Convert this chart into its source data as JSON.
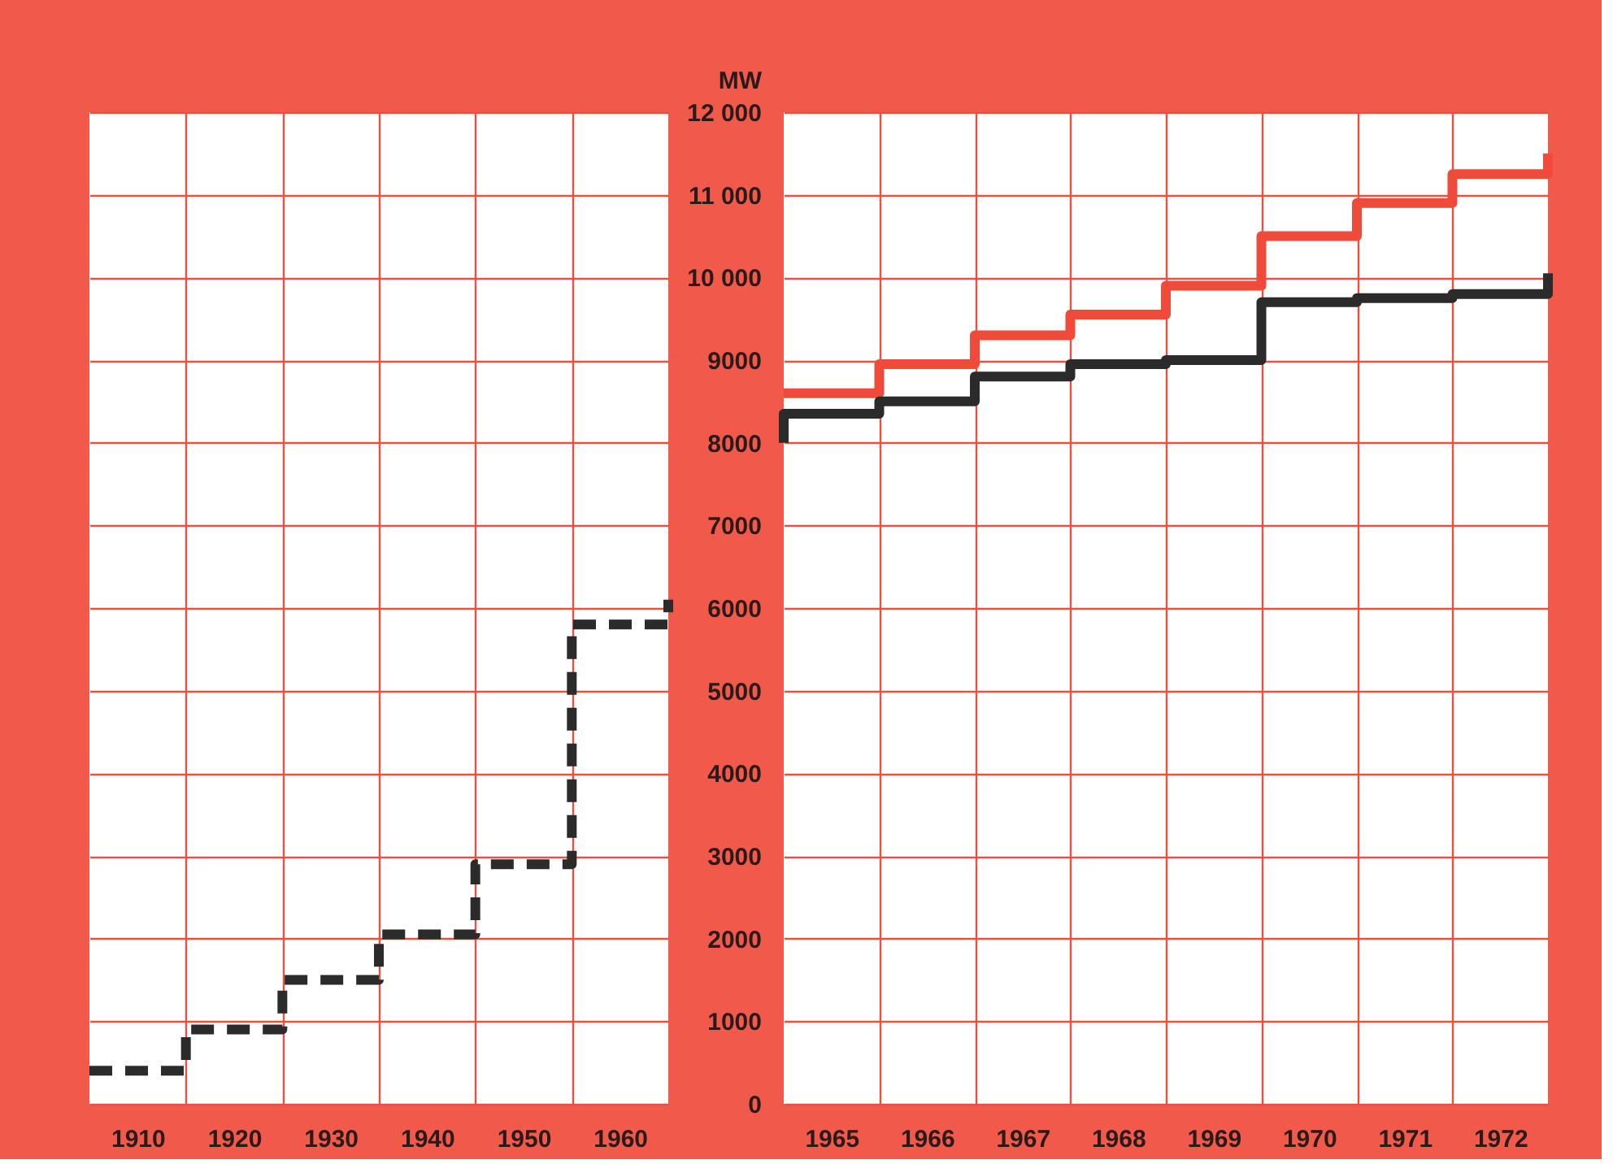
{
  "chart_data": [
    {
      "type": "step",
      "xlim": [
        1905,
        1965
      ],
      "xticks": [
        {
          "value": 1910,
          "label": "1910"
        },
        {
          "value": 1915,
          "label": null
        },
        {
          "value": 1920,
          "label": "1920"
        },
        {
          "value": 1925,
          "label": null
        },
        {
          "value": 1930,
          "label": "1930"
        },
        {
          "value": 1935,
          "label": null
        },
        {
          "value": 1940,
          "label": "1940"
        },
        {
          "value": 1945,
          "label": null
        },
        {
          "value": 1950,
          "label": "1950"
        },
        {
          "value": 1955,
          "label": null
        },
        {
          "value": 1960,
          "label": "1960"
        }
      ],
      "ylim": [
        0,
        12000
      ],
      "yticks": [
        0,
        1000,
        2000,
        3000,
        4000,
        5000,
        6000,
        7000,
        8000,
        9000,
        10000,
        11000,
        12000
      ],
      "tick_labels": "x",
      "grid": true,
      "line_style": "dashed",
      "series": [
        {
          "color": "#2b2b2b",
          "x": [
            1905,
            1915,
            1925,
            1935,
            1945,
            1955,
            1965
          ],
          "values": [
            400,
            900,
            1500,
            2050,
            2900,
            5800,
            6100
          ]
        }
      ]
    },
    {
      "type": "step",
      "xlim": [
        1964.5,
        1972.5
      ],
      "xticks": [
        {
          "value": 1965,
          "label": "1965"
        },
        {
          "value": 1965.5,
          "label": null
        },
        {
          "value": 1966,
          "label": "1966"
        },
        {
          "value": 1966.5,
          "label": null
        },
        {
          "value": 1967,
          "label": "1967"
        },
        {
          "value": 1967.5,
          "label": null
        },
        {
          "value": 1968,
          "label": "1968"
        },
        {
          "value": 1968.5,
          "label": null
        },
        {
          "value": 1969,
          "label": "1969"
        },
        {
          "value": 1969.5,
          "label": null
        },
        {
          "value": 1970,
          "label": "1970"
        },
        {
          "value": 1970.5,
          "label": null
        },
        {
          "value": 1971,
          "label": "1971"
        },
        {
          "value": 1971.5,
          "label": null
        },
        {
          "value": 1972,
          "label": "1972"
        }
      ],
      "ylabel": "MW",
      "ylim": [
        0,
        12000
      ],
      "yticks": [
        0,
        1000,
        2000,
        3000,
        4000,
        5000,
        6000,
        7000,
        8000,
        9000,
        {
          "value": 10000,
          "label": "10 000"
        },
        {
          "value": 11000,
          "label": "11 000"
        },
        {
          "value": 12000,
          "label": "12 000"
        }
      ],
      "grid": true,
      "line_style": "solid",
      "series": [
        {
          "color": "#f04a3a",
          "x": [
            1964.5,
            1965.5,
            1966.5,
            1967.5,
            1968.5,
            1969.5,
            1970.5,
            1971.5,
            1972.5
          ],
          "values": [
            8600,
            8950,
            9300,
            9550,
            9900,
            10500,
            10900,
            11250,
            11500
          ]
        },
        {
          "color": "#2b2b2b",
          "x": [
            1964.5,
            1964.5,
            1965.5,
            1966.5,
            1967.5,
            1968.5,
            1969.5,
            1970.5,
            1971.5,
            1972.5
          ],
          "values": [
            8000,
            8350,
            8500,
            8800,
            8950,
            9000,
            9700,
            9750,
            9800,
            10050
          ]
        }
      ]
    }
  ]
}
